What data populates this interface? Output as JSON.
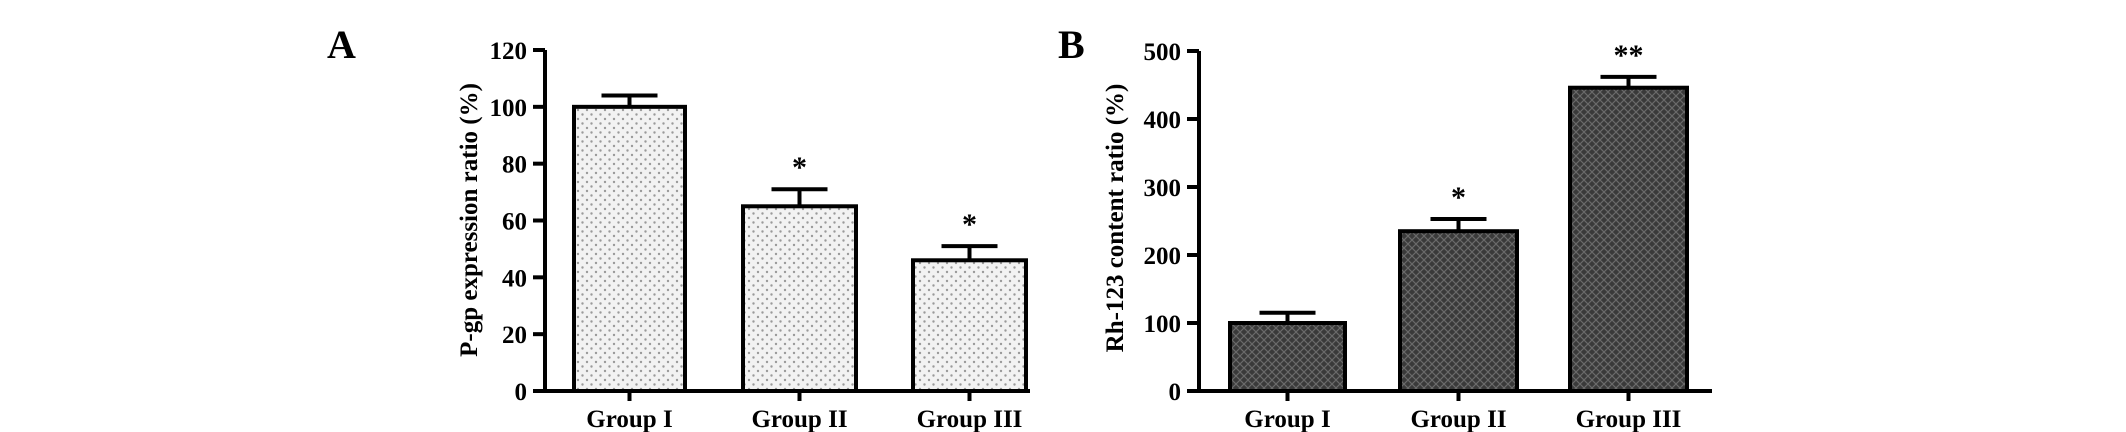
{
  "chart_data": [
    {
      "panel": "A",
      "type": "bar",
      "ylabel": "P-gp expression ratio (%)",
      "xlabel": "",
      "ylim": [
        0,
        120
      ],
      "yticks": [
        0,
        20,
        40,
        60,
        80,
        100,
        120
      ],
      "categories": [
        "Group I",
        "Group II",
        "Group III"
      ],
      "values": [
        100,
        65,
        46
      ],
      "errors": [
        4,
        6,
        5
      ],
      "significance": [
        "",
        "*",
        "*"
      ],
      "bar_pattern": "light-dotted",
      "grid": false
    },
    {
      "panel": "B",
      "type": "bar",
      "ylabel": "Rh-123 content ratio (%)",
      "xlabel": "",
      "ylim": [
        0,
        500
      ],
      "yticks": [
        0,
        100,
        200,
        300,
        400,
        500
      ],
      "categories": [
        "Group I",
        "Group II",
        "Group III"
      ],
      "values": [
        100,
        235,
        446
      ],
      "errors": [
        15,
        18,
        16
      ],
      "significance": [
        "",
        "*",
        "**"
      ],
      "bar_pattern": "dark-textured",
      "grid": false
    }
  ],
  "colors": {
    "axis": "#000000",
    "bar_light_fill": "#f2f2f2",
    "bar_light_dots": "#9a9a9a",
    "bar_dark_fill": "#3a3a3a",
    "bar_dark_texture": "#6a6a6a"
  }
}
